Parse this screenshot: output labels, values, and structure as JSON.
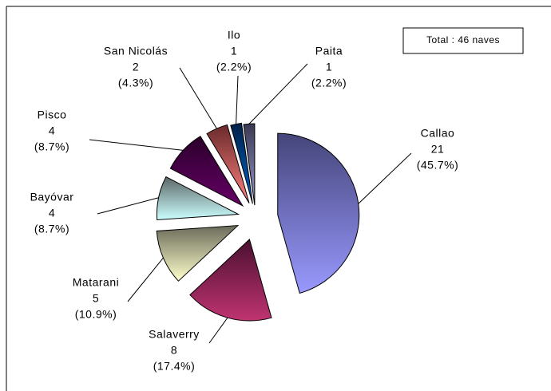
{
  "chart_data": {
    "type": "pie",
    "annotation": "Total : 46 naves",
    "categories": [
      "Callao",
      "Salaverry",
      "Matarani",
      "Bayóvar",
      "Pisco",
      "San Nicolás",
      "Ilo",
      "Paita"
    ],
    "values": [
      21,
      8,
      5,
      4,
      4,
      2,
      1,
      1
    ],
    "percent_labels": [
      "(45.7%)",
      "(17.4%)",
      "(10.9%)",
      "(8.7%)",
      "(8.7%)",
      "(4.3%)",
      "(2.2%)",
      "(2.2%)"
    ],
    "colors": [
      "#9999ff",
      "#c03472",
      "#ffffcc",
      "#ccffff",
      "#660066",
      "#ff8080",
      "#0066cc",
      "#9999cc"
    ],
    "colors_dark": [
      "#45457a",
      "#4a1030",
      "#6a6a5a",
      "#5a6666",
      "#2a002a",
      "#6a2a2a",
      "#002048",
      "#3a3a55"
    ]
  }
}
